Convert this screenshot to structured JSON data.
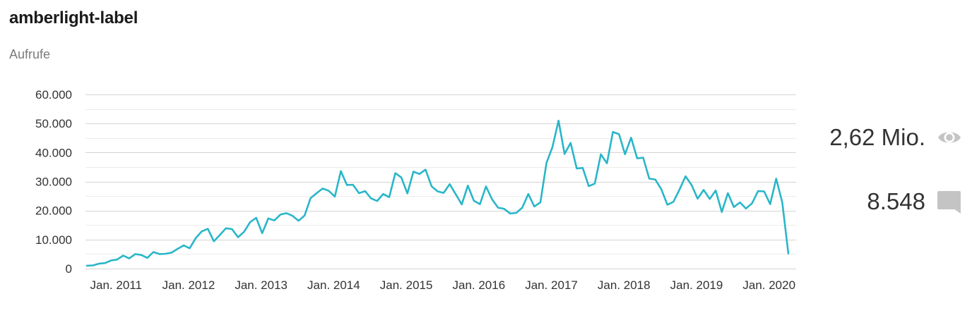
{
  "header": {
    "title": "amberlight-label",
    "metric_label": "Aufrufe"
  },
  "stats": {
    "views": "2,62 Mio.",
    "views_icon": "eye-icon",
    "comments": "8.548",
    "comments_icon": "comment-icon"
  },
  "colors": {
    "line": "#29b6c9",
    "grid": "#d4d4d4",
    "icon": "#c4c4c4"
  },
  "chart_data": {
    "type": "line",
    "x_unit": "month",
    "x_start": "2010-09",
    "ylim": [
      0,
      60000
    ],
    "grid": true,
    "y_ticks": [
      0,
      10000,
      20000,
      30000,
      40000,
      50000,
      60000
    ],
    "y_tick_labels": [
      "0",
      "10.000",
      "20.000",
      "30.000",
      "40.000",
      "50.000",
      "60.000"
    ],
    "x_ticks": [
      "2011-01",
      "2012-01",
      "2013-01",
      "2014-01",
      "2015-01",
      "2016-01",
      "2017-01",
      "2018-01",
      "2019-01",
      "2020-01"
    ],
    "x_tick_labels": [
      "Jan. 2011",
      "Jan. 2012",
      "Jan. 2013",
      "Jan. 2014",
      "Jan. 2015",
      "Jan. 2016",
      "Jan. 2017",
      "Jan. 2018",
      "Jan. 2019",
      "Jan. 2020"
    ],
    "series": [
      {
        "values": [
          1000,
          1100,
          1700,
          1900,
          2800,
          3100,
          4500,
          3500,
          5000,
          4700,
          3700,
          5700,
          5000,
          5100,
          5500,
          6800,
          8000,
          7000,
          10500,
          12800,
          13700,
          9400,
          11600,
          13900,
          13600,
          10800,
          12700,
          16000,
          17500,
          12200,
          17300,
          16600,
          18600,
          19100,
          18200,
          16500,
          18300,
          24300,
          26000,
          27600,
          26800,
          24800,
          33600,
          28800,
          28900,
          26000,
          26700,
          24200,
          23300,
          25700,
          24600,
          32900,
          31400,
          25900,
          33400,
          32600,
          34100,
          28400,
          26600,
          26100,
          29100,
          25600,
          22100,
          28600,
          23400,
          22200,
          28300,
          23900,
          21000,
          20600,
          19000,
          19200,
          21000,
          25700,
          21400,
          22800,
          36400,
          41900,
          51000,
          39500,
          43300,
          34500,
          34700,
          28400,
          29300,
          39400,
          36300,
          47100,
          46300,
          39400,
          45100,
          38000,
          38200,
          31000,
          30700,
          27300,
          22000,
          23000,
          27200,
          31800,
          28800,
          24100,
          27100,
          24000,
          26900,
          19500,
          26000,
          21200,
          22800,
          20700,
          22500,
          26700,
          26600,
          22200,
          31000,
          22800,
          5200
        ]
      }
    ]
  }
}
